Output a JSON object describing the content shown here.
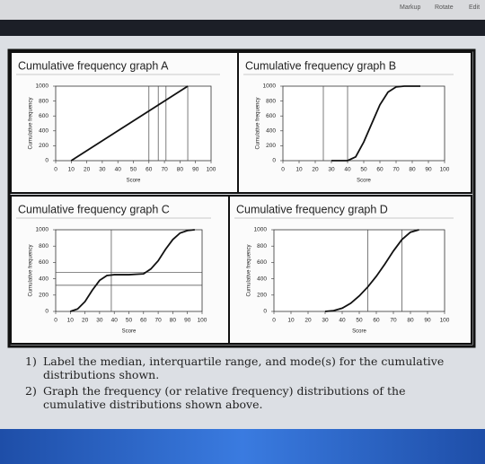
{
  "toolbar": {
    "items": [
      "Markup",
      "Rotate",
      "Edit"
    ]
  },
  "chart_data": [
    {
      "type": "line",
      "title": "Cumulative frequency graph A",
      "xlabel": "Score",
      "ylabel": "Cumulative frequency",
      "x": [
        10,
        85
      ],
      "values": [
        0,
        1000
      ],
      "color": "#111111",
      "xlim": [
        0,
        100
      ],
      "ylim": [
        0,
        1000
      ],
      "xticks": [
        0,
        10,
        20,
        30,
        40,
        50,
        60,
        70,
        80,
        90,
        100
      ],
      "yticks": [
        0,
        200,
        400,
        600,
        800,
        1000
      ],
      "vlines": [
        60,
        66,
        71,
        85
      ],
      "hlines": []
    },
    {
      "type": "line",
      "title": "Cumulative frequency graph B",
      "xlabel": "Score",
      "ylabel": "Cumulative frequency",
      "x": [
        30,
        40,
        45,
        50,
        55,
        60,
        65,
        70,
        75,
        85
      ],
      "values": [
        0,
        0,
        50,
        250,
        500,
        750,
        920,
        990,
        1000,
        1000
      ],
      "color": "#111111",
      "xlim": [
        0,
        100
      ],
      "ylim": [
        0,
        1000
      ],
      "xticks": [
        0,
        10,
        20,
        30,
        40,
        50,
        60,
        70,
        80,
        90,
        100
      ],
      "yticks": [
        0,
        200,
        400,
        600,
        800,
        1000
      ],
      "vlines": [
        25,
        40
      ],
      "hlines": []
    },
    {
      "type": "line",
      "title": "Cumulative frequency graph C",
      "xlabel": "Score",
      "ylabel": "Cumulative frequency",
      "x": [
        10,
        15,
        20,
        25,
        30,
        35,
        40,
        50,
        60,
        65,
        70,
        75,
        80,
        85,
        90,
        95
      ],
      "values": [
        0,
        30,
        120,
        260,
        380,
        440,
        450,
        450,
        460,
        520,
        620,
        760,
        880,
        960,
        990,
        1000
      ],
      "color": "#111111",
      "xlim": [
        0,
        100
      ],
      "ylim": [
        0,
        1000
      ],
      "xticks": [
        0,
        10,
        20,
        30,
        40,
        50,
        60,
        70,
        80,
        90,
        100
      ],
      "yticks": [
        0,
        200,
        400,
        600,
        800,
        1000
      ],
      "vlines": [
        38
      ],
      "hlines": [
        480,
        320
      ]
    },
    {
      "type": "line",
      "title": "Cumulative frequency graph D",
      "xlabel": "Score",
      "ylabel": "Cumulative frequency",
      "x": [
        30,
        35,
        40,
        45,
        50,
        55,
        60,
        65,
        70,
        75,
        80,
        85
      ],
      "values": [
        0,
        10,
        40,
        100,
        190,
        300,
        430,
        580,
        740,
        880,
        970,
        1000
      ],
      "color": "#111111",
      "xlim": [
        0,
        100
      ],
      "ylim": [
        0,
        1000
      ],
      "xticks": [
        0,
        10,
        20,
        30,
        40,
        50,
        60,
        70,
        80,
        90,
        100
      ],
      "yticks": [
        0,
        200,
        400,
        600,
        800,
        1000
      ],
      "vlines": [
        55,
        75
      ],
      "hlines": []
    }
  ],
  "questions": [
    {
      "number": "1)",
      "text": "Label the median, interquartile range, and mode(s) for the cumulative distributions shown."
    },
    {
      "number": "2)",
      "text": "Graph the frequency (or relative frequency) distributions of the cumulative distributions shown above."
    }
  ]
}
